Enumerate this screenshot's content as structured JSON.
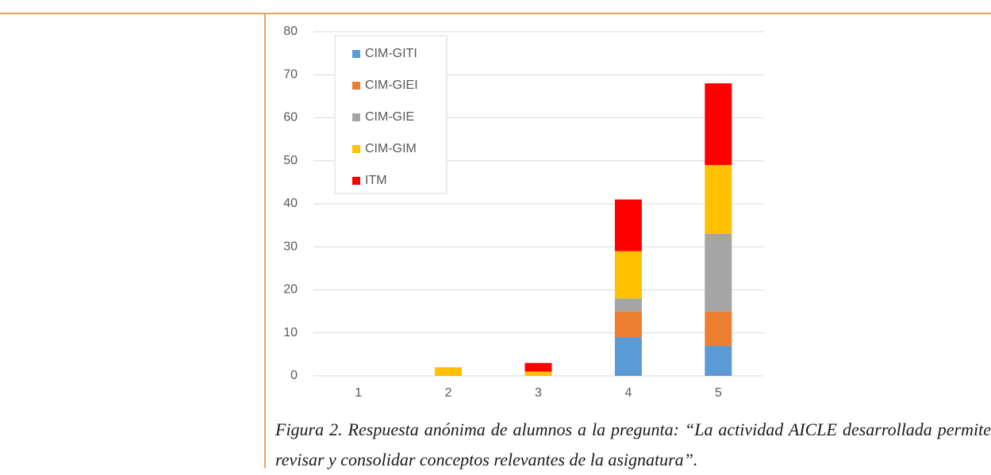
{
  "chart_data": {
    "type": "stacked_bar",
    "categories": [
      "1",
      "2",
      "3",
      "4",
      "5"
    ],
    "series": [
      {
        "name": "CIM-GITI",
        "color": "#5b9bd5",
        "values": [
          0,
          0,
          0,
          9,
          7
        ]
      },
      {
        "name": "CIM-GIEI",
        "color": "#ed7d31",
        "values": [
          0,
          0,
          0,
          6,
          8
        ]
      },
      {
        "name": "CIM-GIE",
        "color": "#a5a5a5",
        "values": [
          0,
          0,
          0,
          3,
          18
        ]
      },
      {
        "name": "CIM-GIM",
        "color": "#ffc000",
        "values": [
          0,
          2,
          1,
          11,
          16
        ]
      },
      {
        "name": "ITM",
        "color": "#ff0000",
        "values": [
          0,
          0,
          2,
          12,
          19
        ]
      }
    ],
    "ylim": [
      0,
      80
    ],
    "yticks": [
      0,
      10,
      20,
      30,
      40,
      50,
      60,
      70,
      80
    ],
    "grid": true,
    "legend": "top-left"
  },
  "caption": "Figura 2. Respuesta anónima de alumnos a la pregunta: “La actividad AICLE desarrollada permite revisar y consolidar conceptos relevantes de la asignatura”."
}
